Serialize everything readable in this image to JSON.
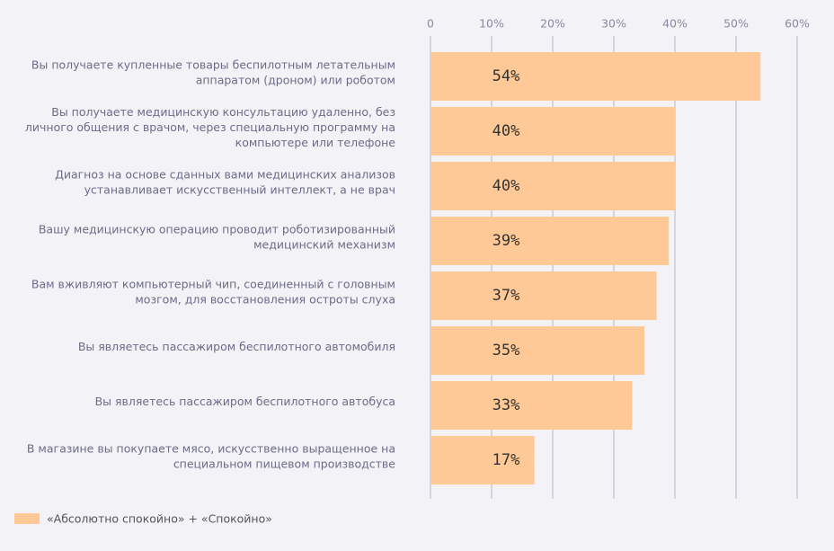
{
  "chart_data": {
    "type": "barh",
    "categories": [
      "Вы получаете купленные товары беспилотным летательным\nаппаратом (дроном) или роботом",
      "Вы получаете медицинскую консультацию удаленно, без\nличного общения с врачом, через специальную программу на\nкомпьютере или телефоне",
      "Диагноз на основе сданных вами медицинских анализов\nустанавливает искусственный интеллект, а не врач",
      "Вашу медицинскую операцию проводит роботизированный\nмедицинский механизм",
      "Вам вживляют компьютерный чип, соединенный с головным\nмозгом, для восстановления остроты слуха",
      "Вы являетесь пассажиром беспилотного автомобиля",
      "Вы являетесь пассажиром беспилотного автобуса",
      "В магазине вы покупаете мясо, искусственно выращенное на\nспециальном пищевом производстве"
    ],
    "series": [
      {
        "name": "«Абсолютно спокойно» + «Спокойно»",
        "color": "#fec996",
        "values": [
          54,
          40,
          40,
          39,
          37,
          35,
          33,
          17
        ],
        "value_labels": [
          "54%",
          "40%",
          "40%",
          "39%",
          "37%",
          "35%",
          "33%",
          "17%"
        ]
      }
    ],
    "xlim": [
      0,
      60
    ],
    "xticks": [
      0,
      {
        "value": 10,
        "label": "10%"
      },
      {
        "value": 20,
        "label": "20%"
      },
      {
        "value": 30,
        "label": "30%"
      },
      {
        "value": 40,
        "label": "40%"
      },
      {
        "value": 50,
        "label": "50%"
      },
      {
        "value": 60,
        "label": "60%"
      }
    ],
    "grid": true
  }
}
